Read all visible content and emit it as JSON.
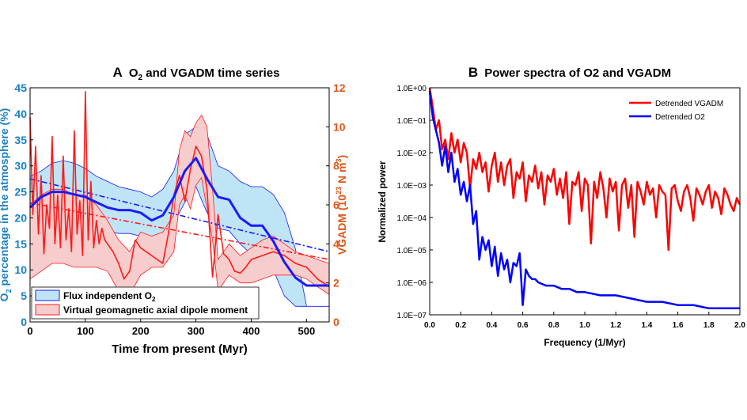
{
  "colors": {
    "o2": "#1a1aff",
    "o2_band": "#bfe4f5",
    "vgadm": "#ff1a1a",
    "vgadm_band": "#f7cccc",
    "left_axis": "#1a7fc4",
    "right_axis": "#e0561a",
    "red_trace": "#ff0000",
    "blue_trace": "#0000ff"
  },
  "chart_data": [
    {
      "type": "line",
      "panel_letter": "A",
      "title_prefix": "O",
      "title_sub": "2",
      "title_suffix": " and VGADM time series",
      "xlabel": "Time from present (Myr)",
      "ylabel_left_prefix": "O",
      "ylabel_left_sub": "2",
      "ylabel_left_suffix": " percentage in the atmosphere (%)",
      "ylabel_right_prefix": "VGADM (10",
      "ylabel_right_sup": "23",
      "ylabel_right_mid": " N m",
      "ylabel_right_sup2": "3",
      "ylabel_right_suffix": ")",
      "xlim": [
        0,
        541
      ],
      "ylim_left": [
        0,
        45
      ],
      "ylim_right": [
        0,
        12
      ],
      "xticks": [
        0,
        100,
        200,
        300,
        400,
        500
      ],
      "yticks_left": [
        0,
        5,
        10,
        15,
        20,
        25,
        30,
        35,
        40,
        45
      ],
      "yticks_right": [
        0,
        2,
        4,
        6,
        8,
        10,
        12
      ],
      "legend": [
        {
          "label_prefix": "Flux independent O",
          "label_sub": "2",
          "label_suffix": ""
        },
        {
          "label_prefix": "Virtual geomagnetic axial dipole moment",
          "label_sub": "",
          "label_suffix": ""
        }
      ],
      "series": [
        {
          "name": "O2 median",
          "axis": "left",
          "x": [
            0,
            20,
            40,
            60,
            80,
            100,
            120,
            140,
            160,
            180,
            200,
            220,
            240,
            260,
            280,
            300,
            320,
            340,
            360,
            380,
            400,
            420,
            440,
            460,
            480,
            500,
            520,
            541
          ],
          "y": [
            22,
            24,
            25,
            25,
            24.5,
            24,
            23,
            22,
            21.5,
            21.5,
            21,
            19.5,
            20.5,
            24,
            29,
            31.5,
            27.5,
            24,
            23.5,
            20,
            18.5,
            18.5,
            15.5,
            11.5,
            8.5,
            7,
            7,
            7
          ]
        },
        {
          "name": "O2 band upper",
          "axis": "left",
          "x": [
            0,
            20,
            40,
            60,
            80,
            100,
            120,
            140,
            160,
            180,
            200,
            220,
            240,
            260,
            280,
            300,
            320,
            340,
            360,
            380,
            400,
            420,
            440,
            460,
            480,
            500,
            520,
            541
          ],
          "y": [
            28,
            29,
            30.5,
            31,
            30.5,
            29.5,
            28,
            27,
            26,
            25.5,
            25,
            24,
            25.5,
            29,
            36,
            37.5,
            36,
            30,
            29,
            27,
            26,
            26,
            24.5,
            21,
            14,
            3,
            3,
            3
          ]
        },
        {
          "name": "O2 band lower",
          "axis": "left",
          "x": [
            0,
            20,
            40,
            60,
            80,
            100,
            120,
            140,
            160,
            180,
            200,
            220,
            240,
            260,
            280,
            300,
            320,
            340,
            360,
            380,
            400,
            420,
            440,
            460,
            480,
            500,
            520,
            541
          ],
          "y": [
            17,
            19,
            20,
            20,
            19.5,
            19,
            18,
            17.5,
            17,
            17,
            16.5,
            15,
            16,
            19,
            23,
            26,
            21,
            18,
            17.5,
            15,
            13,
            13,
            10,
            5,
            3,
            3,
            3,
            3
          ]
        },
        {
          "name": "VGADM median",
          "axis": "right",
          "x": [
            0,
            5,
            10,
            15,
            20,
            25,
            30,
            35,
            40,
            45,
            50,
            55,
            60,
            65,
            70,
            75,
            80,
            85,
            90,
            95,
            100,
            105,
            110,
            115,
            120,
            125,
            130,
            135,
            140,
            150,
            160,
            170,
            180,
            190,
            200,
            210,
            220,
            230,
            240,
            250,
            260,
            270,
            280,
            290,
            300,
            310,
            320,
            330,
            340,
            350,
            360,
            370,
            380,
            390,
            400,
            420,
            440,
            460,
            480,
            500,
            520,
            541
          ],
          "y": [
            10.5,
            5.5,
            9.0,
            4.5,
            7.5,
            3.5,
            6.0,
            4.8,
            9.5,
            4.0,
            6.5,
            3.8,
            8.5,
            4.2,
            5.8,
            3.6,
            9.8,
            4.5,
            6.2,
            3.4,
            11.8,
            4.2,
            7.2,
            3.8,
            5.2,
            4.0,
            4.8,
            4.2,
            4.0,
            3.6,
            3.0,
            2.2,
            2.6,
            4.2,
            3.8,
            3.6,
            3.4,
            3.2,
            3.0,
            4.5,
            6.5,
            7.5,
            6.2,
            7.8,
            9.0,
            8.5,
            6.8,
            2.3,
            5.5,
            3.5,
            3.2,
            2.6,
            2.5,
            2.8,
            3.2,
            3.4,
            3.6,
            3.4,
            3.0,
            2.8,
            2.2,
            1.8
          ]
        },
        {
          "name": "VGADM band upper",
          "axis": "right",
          "x": [
            0,
            20,
            40,
            60,
            80,
            100,
            120,
            140,
            160,
            180,
            200,
            220,
            240,
            260,
            270,
            280,
            290,
            300,
            310,
            320,
            330,
            340,
            360,
            380,
            400,
            420,
            440,
            460,
            480,
            500,
            520,
            541
          ],
          "y": [
            6.0,
            6.5,
            6.8,
            6.8,
            6.5,
            6.5,
            6.0,
            5.2,
            4.2,
            3.6,
            4.6,
            4.4,
            4.6,
            5.5,
            8.8,
            9.8,
            9.5,
            10.2,
            10.6,
            10.0,
            6.8,
            3.2,
            4.0,
            3.4,
            3.8,
            4.2,
            4.4,
            4.0,
            3.6,
            3.4,
            3.2,
            3.0
          ]
        },
        {
          "name": "VGADM band lower",
          "axis": "right",
          "x": [
            0,
            20,
            40,
            60,
            80,
            100,
            120,
            140,
            160,
            180,
            200,
            220,
            240,
            260,
            270,
            280,
            290,
            300,
            310,
            320,
            330,
            340,
            360,
            380,
            400,
            420,
            440,
            460,
            480,
            500,
            520,
            541
          ],
          "y": [
            2.2,
            2.6,
            3.0,
            3.0,
            2.8,
            2.8,
            2.8,
            2.6,
            1.6,
            1.4,
            2.4,
            2.8,
            2.8,
            3.6,
            6.0,
            6.5,
            5.8,
            7.0,
            7.4,
            5.8,
            4.2,
            1.6,
            2.4,
            2.0,
            2.0,
            2.2,
            2.4,
            2.4,
            2.4,
            2.2,
            1.8,
            1.4
          ]
        },
        {
          "name": "O2 trend",
          "axis": "left",
          "style": "dashdot",
          "x": [
            0,
            541
          ],
          "y": [
            27.5,
            13.5
          ]
        },
        {
          "name": "VGADM trend",
          "axis": "right",
          "style": "dashdot",
          "x": [
            0,
            541
          ],
          "y": [
            6.1,
            3.2
          ]
        }
      ]
    },
    {
      "type": "line",
      "panel_letter": "B",
      "title": "Power spectra of O2 and VGADM",
      "xlabel": "Frequency (1/Myr)",
      "ylabel": "Normalized power",
      "yscale": "log",
      "xlim": [
        0,
        2.0
      ],
      "ylim_log10": [
        -7,
        0
      ],
      "xticks": [
        0,
        0.2,
        0.4,
        0.6,
        0.8,
        1.0,
        1.2,
        1.4,
        1.6,
        1.8,
        2.0
      ],
      "xtick_labels": [
        "0.0",
        "0.2",
        "0.4",
        "0.6",
        "0.8",
        "1.0",
        "1.2",
        "1.4",
        "1.6",
        "1.8",
        "2.0"
      ],
      "ytick_labels": [
        "1.0E−07",
        "1.0E−06",
        "1.0E−05",
        "1.0E−04",
        "1.0E−03",
        "1.0E−02",
        "1.0E−01",
        "1.0E+00"
      ],
      "legend": [
        "Detrended VGADM",
        "Detrended O2"
      ],
      "series": [
        {
          "name": "Detrended VGADM",
          "x": [
            0.0,
            0.02,
            0.04,
            0.06,
            0.08,
            0.1,
            0.12,
            0.14,
            0.16,
            0.18,
            0.2,
            0.22,
            0.24,
            0.26,
            0.28,
            0.3,
            0.32,
            0.34,
            0.36,
            0.38,
            0.4,
            0.42,
            0.44,
            0.46,
            0.48,
            0.5,
            0.52,
            0.54,
            0.56,
            0.58,
            0.6,
            0.62,
            0.64,
            0.66,
            0.68,
            0.7,
            0.72,
            0.74,
            0.76,
            0.78,
            0.8,
            0.82,
            0.84,
            0.86,
            0.88,
            0.9,
            0.92,
            0.94,
            0.96,
            0.98,
            1.0,
            1.02,
            1.04,
            1.06,
            1.08,
            1.1,
            1.12,
            1.14,
            1.16,
            1.18,
            1.2,
            1.22,
            1.24,
            1.26,
            1.28,
            1.3,
            1.32,
            1.34,
            1.36,
            1.38,
            1.4,
            1.42,
            1.44,
            1.46,
            1.48,
            1.5,
            1.52,
            1.54,
            1.56,
            1.58,
            1.6,
            1.62,
            1.64,
            1.66,
            1.68,
            1.7,
            1.72,
            1.74,
            1.76,
            1.78,
            1.8,
            1.82,
            1.84,
            1.86,
            1.88,
            1.9,
            1.92,
            1.94,
            1.96,
            1.98,
            2.0
          ],
          "y_log10": [
            0.0,
            -0.6,
            -1.3,
            -1.0,
            -1.9,
            -1.6,
            -2.2,
            -1.4,
            -2.0,
            -1.6,
            -2.3,
            -1.7,
            -2.0,
            -3.1,
            -2.2,
            -2.5,
            -2.0,
            -2.6,
            -2.3,
            -3.2,
            -2.4,
            -2.0,
            -2.9,
            -2.3,
            -3.0,
            -2.4,
            -2.2,
            -3.4,
            -2.6,
            -2.8,
            -2.3,
            -3.5,
            -2.7,
            -2.9,
            -2.4,
            -3.1,
            -2.6,
            -3.6,
            -2.7,
            -2.9,
            -2.5,
            -3.3,
            -2.8,
            -3.4,
            -2.6,
            -4.2,
            -2.9,
            -3.0,
            -2.6,
            -3.8,
            -2.8,
            -3.0,
            -4.8,
            -2.9,
            -3.4,
            -2.6,
            -3.1,
            -4.0,
            -2.8,
            -3.2,
            -2.9,
            -4.4,
            -3.0,
            -2.8,
            -3.7,
            -3.0,
            -4.6,
            -2.9,
            -3.2,
            -3.6,
            -2.9,
            -3.3,
            -3.1,
            -4.0,
            -3.0,
            -3.2,
            -3.3,
            -5.0,
            -3.1,
            -3.0,
            -3.5,
            -3.8,
            -3.2,
            -3.0,
            -3.4,
            -4.1,
            -3.1,
            -3.3,
            -3.6,
            -3.2,
            -3.0,
            -3.7,
            -3.2,
            -3.4,
            -3.9,
            -3.1,
            -3.3,
            -3.6,
            -3.8,
            -3.4,
            -3.6
          ]
        },
        {
          "name": "Detrended O2",
          "x": [
            0.0,
            0.02,
            0.04,
            0.06,
            0.08,
            0.1,
            0.12,
            0.14,
            0.16,
            0.18,
            0.2,
            0.22,
            0.24,
            0.26,
            0.28,
            0.3,
            0.32,
            0.34,
            0.36,
            0.38,
            0.4,
            0.42,
            0.44,
            0.46,
            0.48,
            0.5,
            0.52,
            0.54,
            0.56,
            0.58,
            0.6,
            0.62,
            0.64,
            0.66,
            0.68,
            0.7,
            0.75,
            0.8,
            0.85,
            0.9,
            0.95,
            1.0,
            1.1,
            1.2,
            1.3,
            1.4,
            1.5,
            1.6,
            1.7,
            1.8,
            1.9,
            2.0
          ],
          "y_log10": [
            -0.1,
            -0.9,
            -1.3,
            -1.7,
            -2.4,
            -1.8,
            -2.6,
            -2.0,
            -2.9,
            -2.5,
            -3.3,
            -2.9,
            -3.5,
            -3.0,
            -4.2,
            -3.8,
            -5.3,
            -4.6,
            -5.0,
            -4.7,
            -5.5,
            -4.9,
            -5.8,
            -5.1,
            -5.6,
            -5.3,
            -6.0,
            -5.4,
            -5.5,
            -5.1,
            -6.7,
            -5.6,
            -5.8,
            -5.9,
            -5.9,
            -6.0,
            -6.1,
            -6.1,
            -6.2,
            -6.2,
            -6.3,
            -6.3,
            -6.4,
            -6.4,
            -6.5,
            -6.6,
            -6.6,
            -6.7,
            -6.7,
            -6.8,
            -6.8,
            -6.8
          ]
        }
      ]
    }
  ]
}
